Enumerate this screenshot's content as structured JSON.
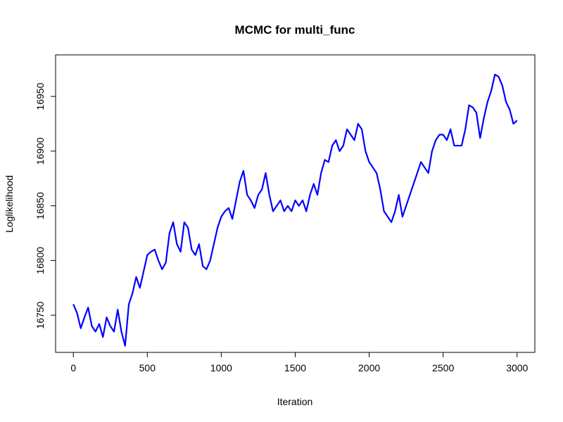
{
  "chart_data": {
    "type": "line",
    "title": "MCMC for multi_func",
    "xlabel": "Iteration",
    "ylabel": "Loglikelihood",
    "x": [
      0,
      25,
      50,
      75,
      100,
      125,
      150,
      175,
      200,
      225,
      250,
      275,
      300,
      325,
      350,
      375,
      400,
      425,
      450,
      475,
      500,
      525,
      550,
      575,
      600,
      625,
      650,
      675,
      700,
      725,
      750,
      775,
      800,
      825,
      850,
      875,
      900,
      925,
      950,
      975,
      1000,
      1025,
      1050,
      1075,
      1100,
      1125,
      1150,
      1175,
      1200,
      1225,
      1250,
      1275,
      1300,
      1325,
      1350,
      1375,
      1400,
      1425,
      1450,
      1475,
      1500,
      1525,
      1550,
      1575,
      1600,
      1625,
      1650,
      1675,
      1700,
      1725,
      1750,
      1775,
      1800,
      1825,
      1850,
      1875,
      1900,
      1925,
      1950,
      1975,
      2000,
      2025,
      2050,
      2075,
      2100,
      2125,
      2150,
      2175,
      2200,
      2225,
      2250,
      2275,
      2300,
      2325,
      2350,
      2375,
      2400,
      2425,
      2450,
      2475,
      2500,
      2525,
      2550,
      2575,
      2600,
      2625,
      2650,
      2675,
      2700,
      2725,
      2750,
      2775,
      2800,
      2825,
      2850,
      2875,
      2900,
      2925,
      2950,
      2975,
      3000
    ],
    "series": [
      {
        "name": "Loglikelihood",
        "color": "#0000ff",
        "values": [
          16760,
          16752,
          16738,
          16748,
          16757,
          16740,
          16735,
          16742,
          16730,
          16748,
          16740,
          16735,
          16755,
          16735,
          16722,
          16760,
          16770,
          16785,
          16775,
          16790,
          16805,
          16808,
          16810,
          16800,
          16792,
          16798,
          16825,
          16835,
          16815,
          16808,
          16835,
          16830,
          16810,
          16805,
          16815,
          16795,
          16792,
          16800,
          16815,
          16830,
          16840,
          16845,
          16848,
          16838,
          16855,
          16872,
          16882,
          16860,
          16855,
          16848,
          16860,
          16865,
          16880,
          16860,
          16845,
          16850,
          16855,
          16845,
          16850,
          16845,
          16855,
          16850,
          16855,
          16845,
          16860,
          16870,
          16860,
          16880,
          16892,
          16890,
          16905,
          16910,
          16900,
          16905,
          16920,
          16915,
          16910,
          16925,
          16920,
          16900,
          16890,
          16885,
          16880,
          16865,
          16845,
          16840,
          16835,
          16845,
          16860,
          16840,
          16850,
          16860,
          16870,
          16880,
          16890,
          16885,
          16880,
          16900,
          16910,
          16915,
          16915,
          16910,
          16920,
          16905,
          16905,
          16905,
          16920,
          16942,
          16940,
          16935,
          16912,
          16930,
          16945,
          16955,
          16970,
          16968,
          16960,
          16945,
          16938,
          16925,
          16928
        ]
      }
    ],
    "xlim": [
      -120,
      3120
    ],
    "ylim": [
      16716,
      16988
    ],
    "xticks": [
      0,
      500,
      1000,
      1500,
      2000,
      2500,
      3000
    ],
    "yticks": [
      16750,
      16800,
      16850,
      16900,
      16950
    ]
  }
}
